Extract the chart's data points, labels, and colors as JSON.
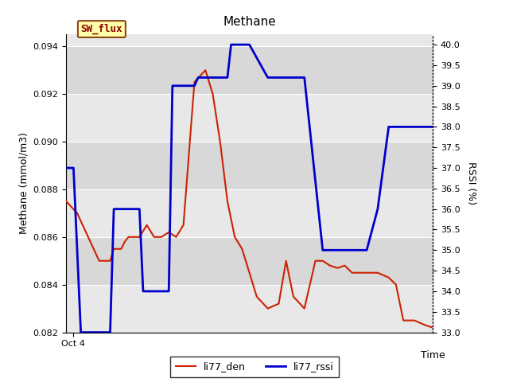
{
  "title": "Methane",
  "ylabel_left": "Methane (mmol/m3)",
  "ylabel_right": "RSSI (%)",
  "xlabel": "Time",
  "xlim": [
    0,
    100
  ],
  "ylim_left": [
    0.082,
    0.0945
  ],
  "ylim_right": [
    33.0,
    40.25
  ],
  "yticks_left": [
    0.082,
    0.084,
    0.086,
    0.088,
    0.09,
    0.092,
    0.094
  ],
  "yticks_right": [
    33.0,
    33.5,
    34.0,
    34.5,
    35.0,
    35.5,
    36.0,
    36.5,
    37.0,
    37.5,
    38.0,
    38.5,
    39.0,
    39.5,
    40.0
  ],
  "x_tick_pos": 2,
  "x_tick_label": "Oct 4",
  "bg_color": "#e8e8e8",
  "bg_dark_color": "#d8d8d8",
  "annotation_box": {
    "text": "SW_flux",
    "facecolor": "#ffffaa",
    "edgecolor": "#8b4513",
    "textcolor": "#8b0000",
    "fontsize": 9,
    "fontfamily": "monospace"
  },
  "red_line": {
    "x": [
      0,
      3,
      6,
      9,
      12,
      13,
      15,
      16,
      17,
      18,
      20,
      22,
      24,
      26,
      28,
      30,
      32,
      35,
      38,
      40,
      42,
      44,
      46,
      48,
      52,
      55,
      58,
      60,
      62,
      65,
      68,
      70,
      72,
      74,
      76,
      78,
      82,
      85,
      88,
      90,
      92,
      95,
      98,
      100
    ],
    "y": [
      0.0875,
      0.087,
      0.086,
      0.085,
      0.085,
      0.0855,
      0.0855,
      0.0858,
      0.086,
      0.086,
      0.086,
      0.0865,
      0.086,
      0.086,
      0.0862,
      0.086,
      0.0865,
      0.0925,
      0.093,
      0.092,
      0.09,
      0.0875,
      0.086,
      0.0855,
      0.0835,
      0.083,
      0.0832,
      0.085,
      0.0835,
      0.083,
      0.085,
      0.085,
      0.0848,
      0.0847,
      0.0848,
      0.0845,
      0.0845,
      0.0845,
      0.0843,
      0.084,
      0.0825,
      0.0825,
      0.0823,
      0.0822
    ],
    "color": "#cc2200",
    "linewidth": 1.5,
    "label": "li77_den"
  },
  "blue_line": {
    "x": [
      0,
      2,
      4,
      5,
      12,
      13,
      16,
      20,
      21,
      28,
      29,
      35,
      36,
      44,
      45,
      50,
      55,
      60,
      65,
      70,
      72,
      74,
      76,
      82,
      85,
      88,
      92,
      95,
      100
    ],
    "y": [
      37.0,
      37.0,
      33.0,
      33.0,
      33.0,
      36.0,
      36.0,
      36.0,
      34.0,
      34.0,
      39.0,
      39.0,
      39.2,
      39.2,
      40.0,
      40.0,
      39.2,
      39.2,
      39.2,
      35.0,
      35.0,
      35.0,
      35.0,
      35.0,
      36.0,
      38.0,
      38.0,
      38.0,
      38.0
    ],
    "color": "#0000cc",
    "linewidth": 2.0,
    "label": "li77_rssi"
  }
}
